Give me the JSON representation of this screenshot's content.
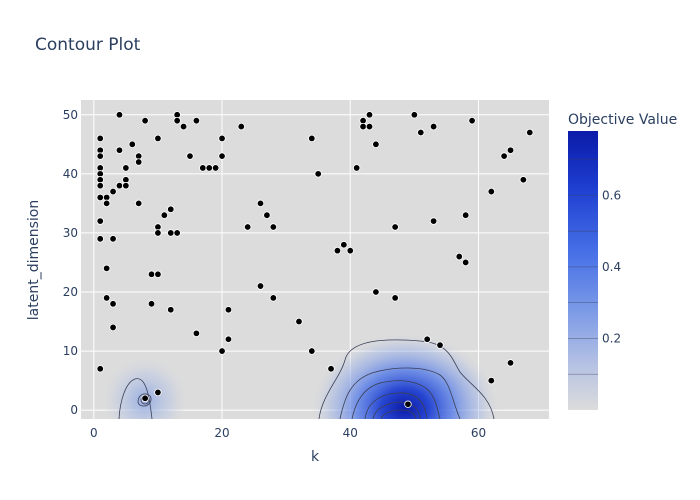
{
  "chart_data": {
    "type": "contour",
    "title": "Contour Plot",
    "xlabel": "k",
    "ylabel": "latent_dimension",
    "xlim": [
      -2,
      71
    ],
    "ylim": [
      -1.5,
      52.5
    ],
    "x_ticks": [
      0,
      20,
      40,
      60
    ],
    "y_ticks": [
      0,
      10,
      20,
      30,
      40,
      50
    ],
    "grid": true,
    "colorbar": {
      "title": "Objective Value",
      "range": [
        0,
        0.78
      ],
      "ticks": [
        0.2,
        0.4,
        0.6
      ],
      "colors": {
        "low": "#dcdcdc",
        "high": "#0b1aa8"
      }
    },
    "contour_peaks": [
      {
        "x": 49,
        "y": 0.5,
        "value": 0.78
      },
      {
        "x": 8,
        "y": 2,
        "value": 0.14
      }
    ],
    "points": [
      [
        1,
        46
      ],
      [
        1,
        44
      ],
      [
        1,
        43
      ],
      [
        1,
        41
      ],
      [
        1,
        40
      ],
      [
        1,
        39
      ],
      [
        1,
        38
      ],
      [
        1,
        36
      ],
      [
        1,
        32
      ],
      [
        1,
        29
      ],
      [
        1,
        7
      ],
      [
        2,
        36
      ],
      [
        2,
        35
      ],
      [
        2,
        24
      ],
      [
        2,
        19
      ],
      [
        3,
        37
      ],
      [
        3,
        29
      ],
      [
        3,
        18
      ],
      [
        3,
        14
      ],
      [
        4,
        50
      ],
      [
        4,
        44
      ],
      [
        4,
        38
      ],
      [
        5,
        41
      ],
      [
        5,
        39
      ],
      [
        5,
        38
      ],
      [
        6,
        45
      ],
      [
        7,
        43
      ],
      [
        7,
        42
      ],
      [
        7,
        35
      ],
      [
        8,
        49
      ],
      [
        8,
        2
      ],
      [
        9,
        23
      ],
      [
        9,
        18
      ],
      [
        10,
        46
      ],
      [
        10,
        31
      ],
      [
        10,
        30
      ],
      [
        10,
        23
      ],
      [
        10,
        3
      ],
      [
        11,
        33
      ],
      [
        12,
        34
      ],
      [
        12,
        30
      ],
      [
        12,
        17
      ],
      [
        13,
        50
      ],
      [
        13,
        49
      ],
      [
        13,
        30
      ],
      [
        14,
        48
      ],
      [
        15,
        43
      ],
      [
        16,
        49
      ],
      [
        16,
        13
      ],
      [
        17,
        41
      ],
      [
        18,
        41
      ],
      [
        19,
        41
      ],
      [
        20,
        46
      ],
      [
        20,
        43
      ],
      [
        20,
        10
      ],
      [
        21,
        17
      ],
      [
        21,
        12
      ],
      [
        23,
        48
      ],
      [
        24,
        31
      ],
      [
        26,
        35
      ],
      [
        26,
        21
      ],
      [
        27,
        33
      ],
      [
        28,
        31
      ],
      [
        28,
        19
      ],
      [
        32,
        15
      ],
      [
        34,
        46
      ],
      [
        34,
        10
      ],
      [
        35,
        40
      ],
      [
        37,
        7
      ],
      [
        38,
        27
      ],
      [
        39,
        28
      ],
      [
        40,
        27
      ],
      [
        41,
        41
      ],
      [
        42,
        49
      ],
      [
        42,
        48
      ],
      [
        43,
        50
      ],
      [
        43,
        48
      ],
      [
        44,
        45
      ],
      [
        44,
        20
      ],
      [
        47,
        31
      ],
      [
        47,
        19
      ],
      [
        49,
        1
      ],
      [
        50,
        50
      ],
      [
        51,
        47
      ],
      [
        52,
        12
      ],
      [
        53,
        48
      ],
      [
        53,
        32
      ],
      [
        54,
        11
      ],
      [
        57,
        26
      ],
      [
        58,
        33
      ],
      [
        58,
        25
      ],
      [
        59,
        49
      ],
      [
        62,
        37
      ],
      [
        62,
        5
      ],
      [
        64,
        43
      ],
      [
        65,
        44
      ],
      [
        65,
        8
      ],
      [
        67,
        39
      ],
      [
        68,
        47
      ]
    ]
  }
}
